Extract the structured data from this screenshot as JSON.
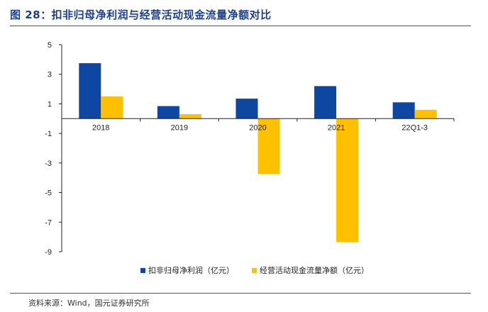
{
  "header": {
    "title": "图 28：扣非归母净利润与经营活动现金流量净额对比"
  },
  "footer": {
    "source": "资料来源：Wind，国元证券研究所"
  },
  "chart_data": {
    "type": "bar",
    "title": "",
    "xlabel": "",
    "ylabel": "",
    "categories": [
      "2018",
      "2019",
      "2020",
      "2021",
      "22Q1-3"
    ],
    "series": [
      {
        "name": "扣非归母净利润（亿元）",
        "color": "#0d47a1",
        "values": [
          3.75,
          0.85,
          1.35,
          2.2,
          1.1
        ]
      },
      {
        "name": "经营活动现金流量净额（亿元）",
        "color": "#ffc000",
        "values": [
          1.5,
          0.3,
          -3.75,
          -8.35,
          0.6
        ]
      }
    ],
    "ylim": [
      -9,
      5
    ],
    "yticks": [
      5,
      3,
      1,
      -1,
      -3,
      -5,
      -7,
      -9
    ],
    "grid": false,
    "legend_position": "bottom"
  }
}
